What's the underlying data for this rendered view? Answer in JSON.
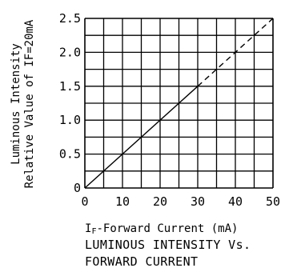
{
  "chart_data": {
    "type": "line",
    "title": "",
    "caption_lines": [
      "LUMINOUS INTENSITY Vs.",
      "FORWARD CURRENT"
    ],
    "xlabel": "IF-Forward Current (mA)",
    "xlabel_prefix_main": "I",
    "xlabel_prefix_sub": "F",
    "xlabel_rest": "-Forward Current (mA)",
    "ylabel_lines": [
      "Luminous Intensity",
      "Relative Value of IF=20mA"
    ],
    "xlim": [
      0,
      50
    ],
    "ylim": [
      0,
      2.5
    ],
    "x_ticks": [
      0,
      10,
      20,
      30,
      40,
      50
    ],
    "x_tick_labels": [
      "0",
      "10",
      "20",
      "30",
      "40",
      "50"
    ],
    "y_ticks": [
      0,
      0.5,
      1.0,
      1.5,
      2.0,
      2.5
    ],
    "y_tick_labels": [
      "0",
      "0.5",
      "1.0",
      "1.5",
      "2.0",
      "2.5"
    ],
    "x_grid_step": 5,
    "y_grid_step": 0.25,
    "grid": true,
    "series": [
      {
        "style": "solid",
        "color": "#000000",
        "x": [
          0,
          30
        ],
        "y": [
          0,
          1.5
        ]
      },
      {
        "style": "dashed",
        "color": "#000000",
        "x": [
          30,
          50
        ],
        "y": [
          1.5,
          2.5
        ]
      }
    ]
  },
  "colors": {
    "ink": "#000000",
    "background": "#ffffff"
  }
}
